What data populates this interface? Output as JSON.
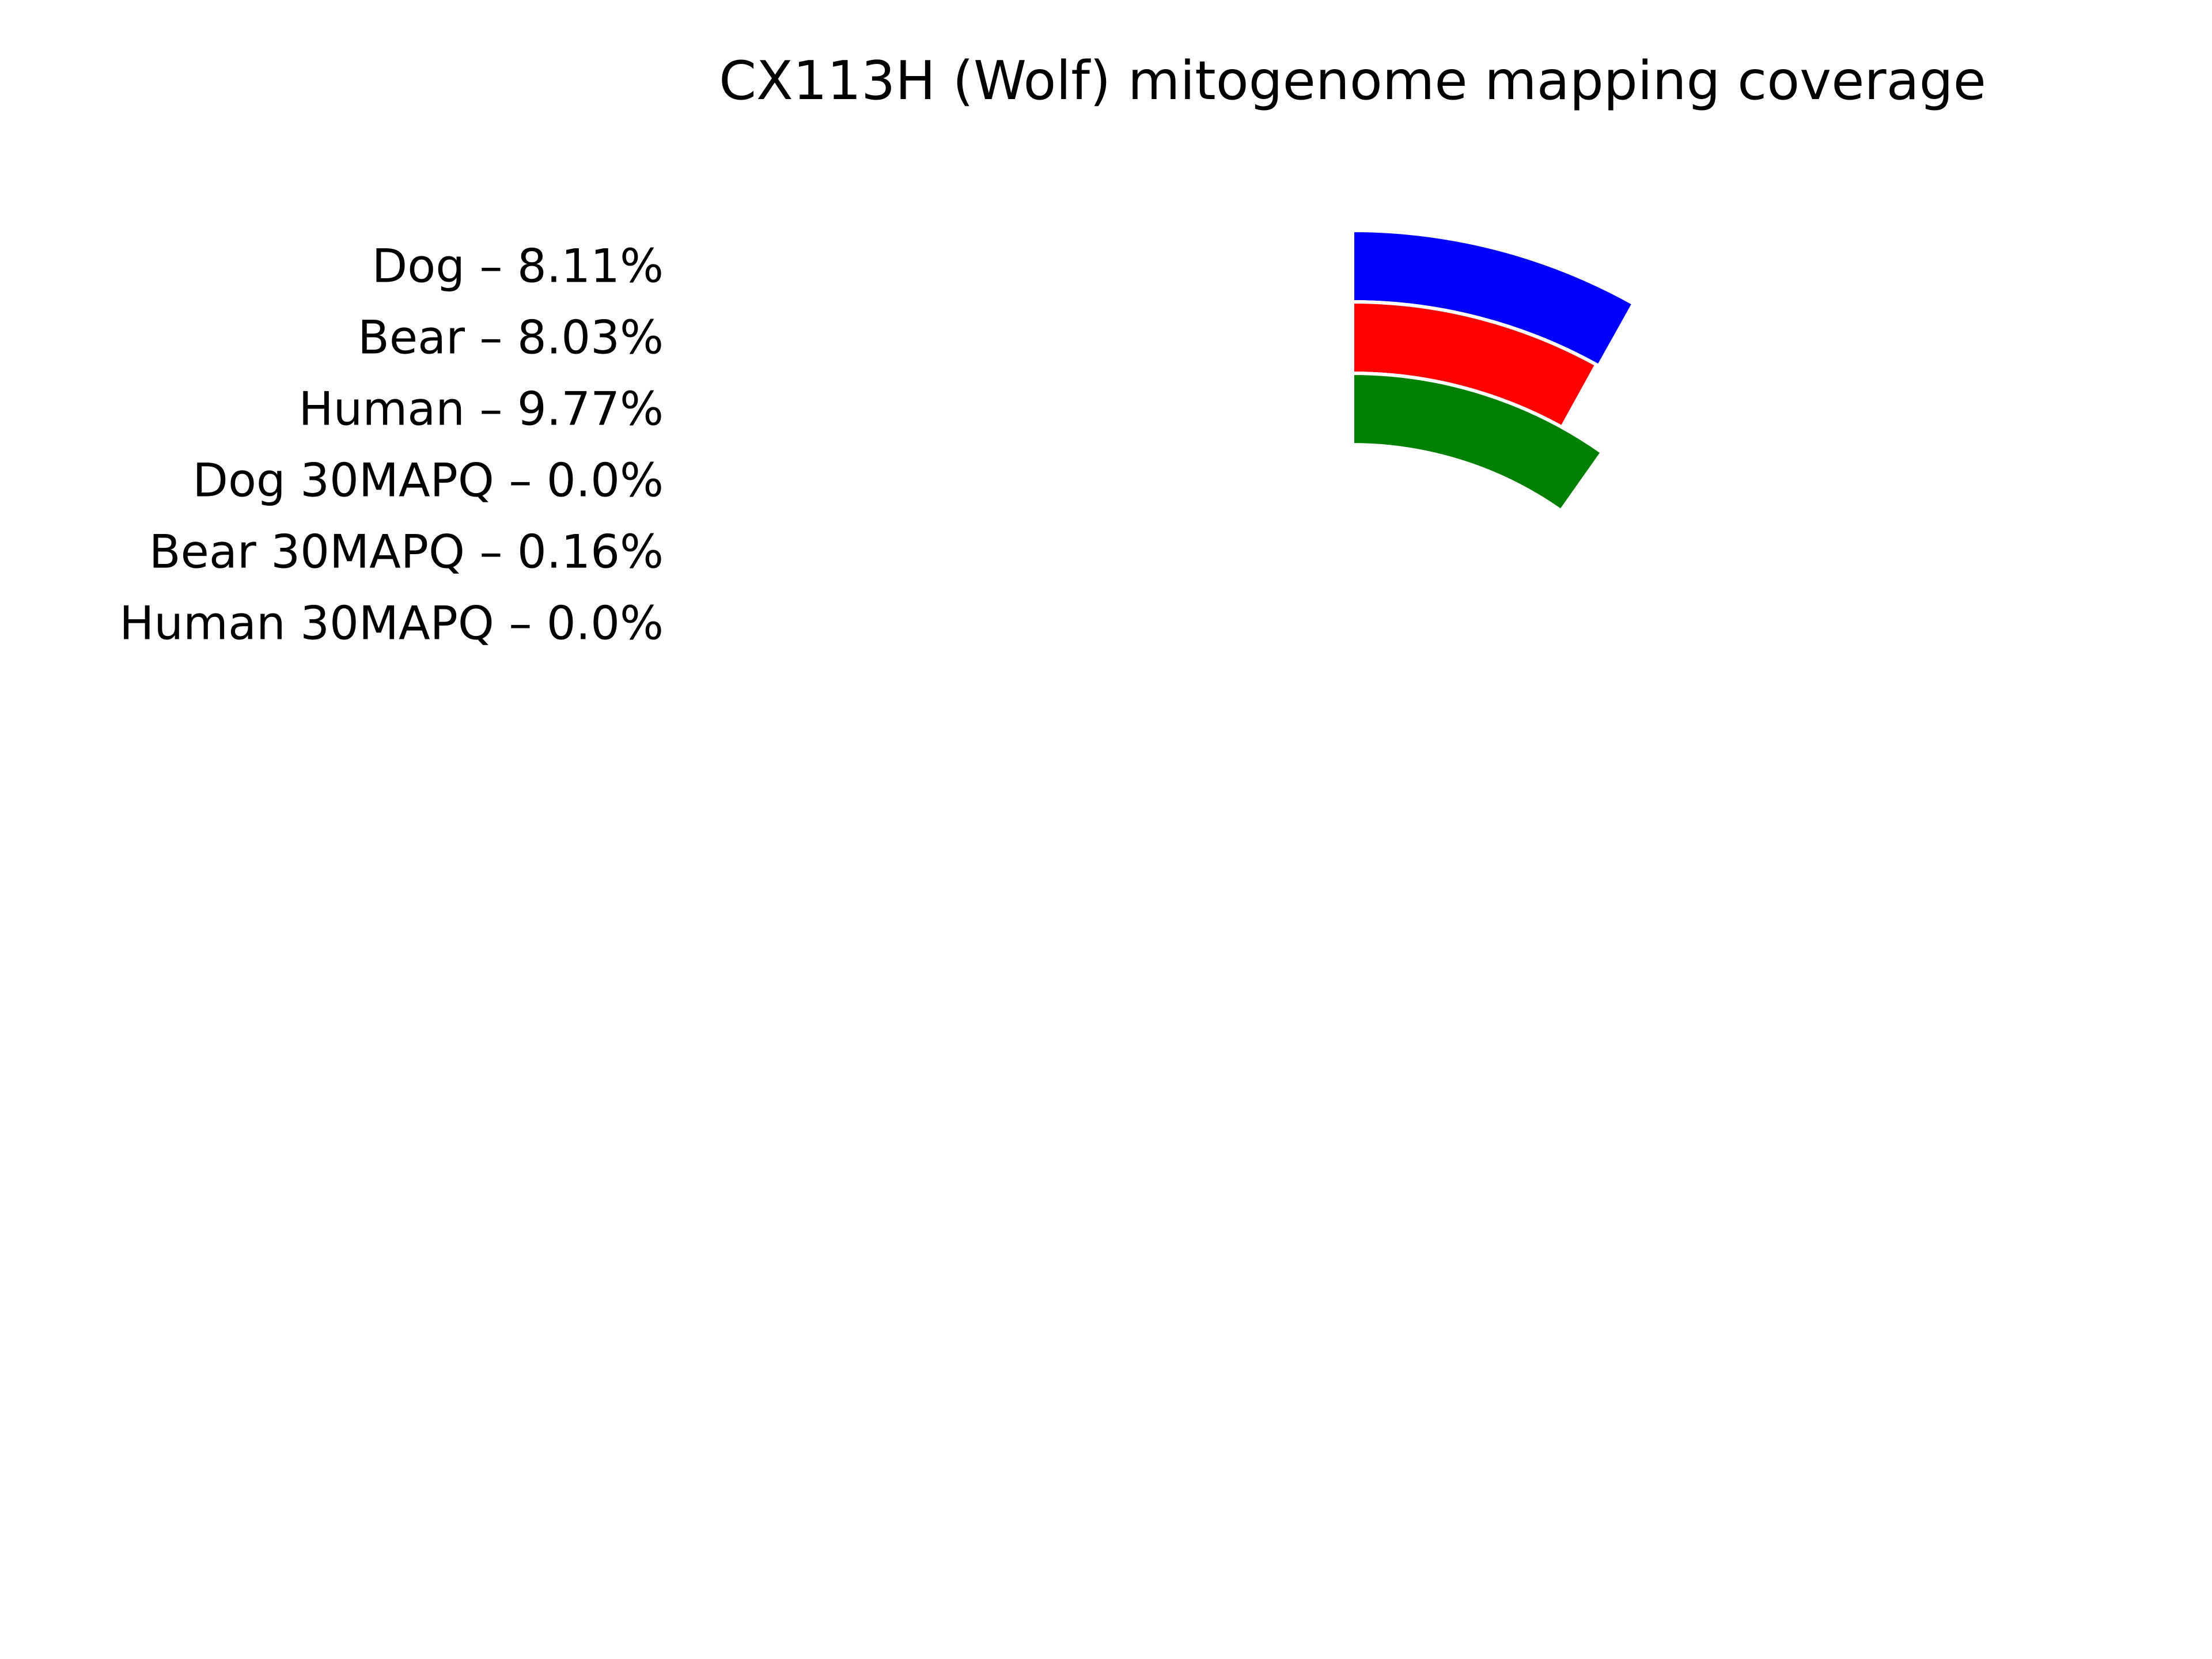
{
  "chart_data": {
    "type": "radial_bar",
    "title": "CX113H (Wolf) mitogenome mapping coverage",
    "start_angle": "top",
    "direction": "clockwise",
    "rings": [
      {
        "name": "Dog",
        "value": 8.11,
        "label": "Dog – 8.11%",
        "color": "#0000ff"
      },
      {
        "name": "Bear",
        "value": 8.03,
        "label": "Bear – 8.03%",
        "color": "#ff0000"
      },
      {
        "name": "Human",
        "value": 9.77,
        "label": "Human – 9.77%",
        "color": "#008000"
      },
      {
        "name": "Dog 30MAPQ",
        "value": 0.0,
        "label": "Dog 30MAPQ – 0.0%",
        "color": "#0000ff"
      },
      {
        "name": "Bear 30MAPQ",
        "value": 0.16,
        "label": "Bear 30MAPQ – 0.16%",
        "color": "#ff0000"
      },
      {
        "name": "Human 30MAPQ",
        "value": 0.0,
        "label": "Human 30MAPQ – 0.0%",
        "color": "#008000"
      }
    ]
  }
}
